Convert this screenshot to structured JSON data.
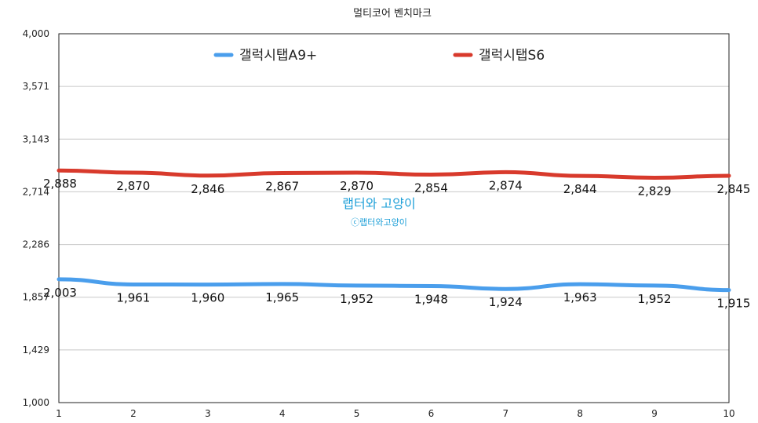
{
  "chart_data": {
    "type": "line",
    "title": "멀티코어 벤치마크",
    "xlabel": "",
    "ylabel": "",
    "x": [
      1,
      2,
      3,
      4,
      5,
      6,
      7,
      8,
      9,
      10
    ],
    "ylim": [
      1000,
      4000
    ],
    "yticks": [
      "1,000",
      "1,429",
      "1,857",
      "2,286",
      "2,714",
      "3,143",
      "3,571",
      "4,000"
    ],
    "ytick_values": [
      1000,
      1428.57,
      1857.14,
      2285.71,
      2714.29,
      3142.86,
      3571.43,
      4000
    ],
    "grid": true,
    "legend_position": "top",
    "series": [
      {
        "name": "갤럭시탭A9+",
        "color": "#4a9eec",
        "values": [
          2003,
          1961,
          1960,
          1965,
          1952,
          1948,
          1924,
          1963,
          1952,
          1915
        ],
        "labels": [
          "2,003",
          "1,961",
          "1,960",
          "1,965",
          "1,952",
          "1,948",
          "1,924",
          "1,963",
          "1,952",
          "1,915"
        ]
      },
      {
        "name": "갤럭시탭S6",
        "color": "#d83a2c",
        "values": [
          2888,
          2870,
          2846,
          2867,
          2870,
          2854,
          2874,
          2844,
          2829,
          2845
        ],
        "labels": [
          "2,888",
          "2,870",
          "2,846",
          "2,867",
          "2,870",
          "2,854",
          "2,874",
          "2,844",
          "2,829",
          "2,845"
        ]
      }
    ],
    "watermark": {
      "main": "랩터와 고양이",
      "sub": "ⓒ랩터와고양이"
    }
  }
}
